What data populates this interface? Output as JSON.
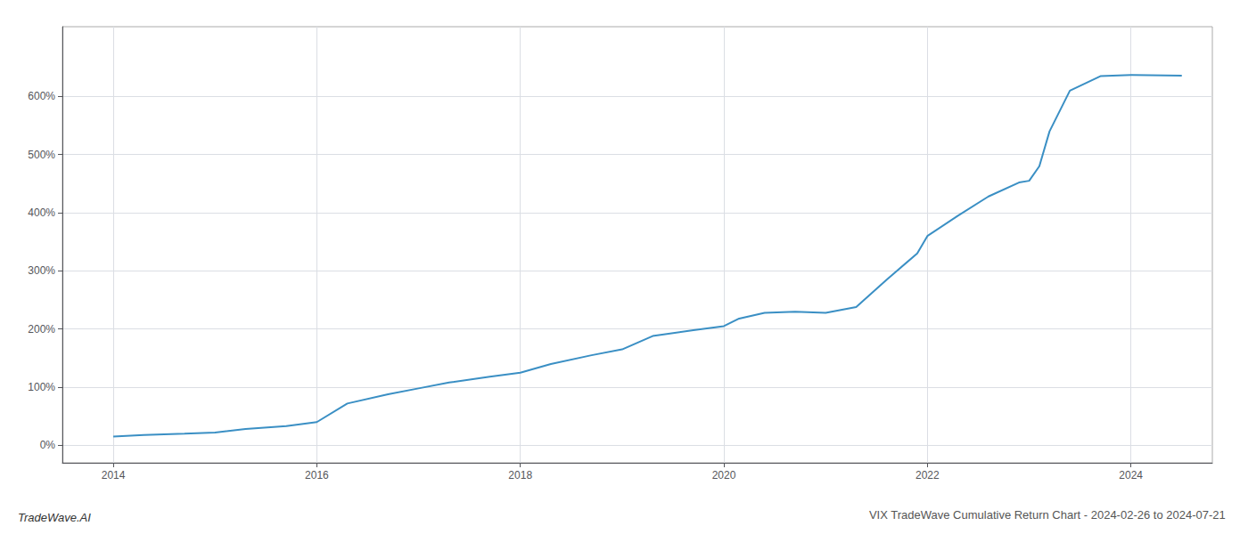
{
  "chart_data": {
    "type": "line",
    "title": "VIX TradeWave Cumulative Return Chart - 2024-02-26 to 2024-07-21",
    "annotations": [
      "TradeWave.AI"
    ],
    "color": "#3a8fc4",
    "grid": true,
    "xlim": [
      2013.5,
      2024.8
    ],
    "ylim": [
      -0.3,
      7.2
    ],
    "xticks": [
      2014,
      2016,
      2018,
      2020,
      2022,
      2024
    ],
    "yticks": [
      {
        "value": 0,
        "label": "0%"
      },
      {
        "value": 1,
        "label": "100%"
      },
      {
        "value": 2,
        "label": "200%"
      },
      {
        "value": 3,
        "label": "300%"
      },
      {
        "value": 4,
        "label": "400%"
      },
      {
        "value": 5,
        "label": "500%"
      },
      {
        "value": 6,
        "label": "600%"
      }
    ],
    "x": [
      2014.0,
      2014.3,
      2014.7,
      2015.0,
      2015.3,
      2015.7,
      2016.0,
      2016.3,
      2016.7,
      2017.0,
      2017.3,
      2017.7,
      2018.0,
      2018.3,
      2018.7,
      2019.0,
      2019.3,
      2019.7,
      2020.0,
      2020.15,
      2020.4,
      2020.7,
      2021.0,
      2021.3,
      2021.6,
      2021.9,
      2022.0,
      2022.3,
      2022.6,
      2022.9,
      2023.0,
      2023.1,
      2023.2,
      2023.4,
      2023.7,
      2024.0,
      2024.5
    ],
    "values": [
      0.15,
      0.18,
      0.2,
      0.22,
      0.28,
      0.33,
      0.4,
      0.72,
      0.88,
      0.98,
      1.08,
      1.18,
      1.25,
      1.4,
      1.55,
      1.65,
      1.88,
      1.98,
      2.05,
      2.18,
      2.28,
      2.3,
      2.28,
      2.38,
      2.85,
      3.3,
      3.6,
      3.95,
      4.28,
      4.52,
      4.55,
      4.8,
      5.4,
      6.1,
      6.35,
      6.37,
      6.36
    ]
  }
}
